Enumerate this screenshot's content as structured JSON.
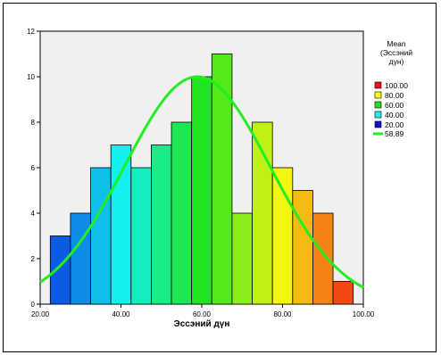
{
  "chart_data": {
    "type": "bar",
    "xlabel": "Эссэний дүн",
    "ylabel": "",
    "xlim": [
      20,
      100
    ],
    "ylim": [
      0,
      12
    ],
    "x_ticks": [
      "20.00",
      "40.00",
      "60.00",
      "80.00",
      "100.00"
    ],
    "y_ticks": [
      "0",
      "2",
      "4",
      "6",
      "8",
      "10",
      "12"
    ],
    "bins": [
      {
        "start": 22.5,
        "end": 27.5,
        "count": 3
      },
      {
        "start": 27.5,
        "end": 32.5,
        "count": 4
      },
      {
        "start": 32.5,
        "end": 37.5,
        "count": 6
      },
      {
        "start": 37.5,
        "end": 42.5,
        "count": 7
      },
      {
        "start": 42.5,
        "end": 47.5,
        "count": 6
      },
      {
        "start": 47.5,
        "end": 52.5,
        "count": 7
      },
      {
        "start": 52.5,
        "end": 57.5,
        "count": 8
      },
      {
        "start": 57.5,
        "end": 62.5,
        "count": 10
      },
      {
        "start": 62.5,
        "end": 67.5,
        "count": 11
      },
      {
        "start": 67.5,
        "end": 72.5,
        "count": 4
      },
      {
        "start": 72.5,
        "end": 77.5,
        "count": 8
      },
      {
        "start": 77.5,
        "end": 82.5,
        "count": 6
      },
      {
        "start": 82.5,
        "end": 87.5,
        "count": 5
      },
      {
        "start": 87.5,
        "end": 92.5,
        "count": 4
      },
      {
        "start": 92.5,
        "end": 97.5,
        "count": 1
      }
    ],
    "normal_curve": {
      "mean": 58.89,
      "sd": 18,
      "peak": 10,
      "color": "#22ee22"
    },
    "color_stops": [
      {
        "value": 20,
        "color": "#0a2adf"
      },
      {
        "value": 40,
        "color": "#12f0f0"
      },
      {
        "value": 60,
        "color": "#1ee51e"
      },
      {
        "value": 80,
        "color": "#f5f513"
      },
      {
        "value": 100,
        "color": "#f01010"
      }
    ],
    "legend": {
      "title_lines": [
        "Mean",
        "(Эссэний",
        "дүн)"
      ],
      "entries": [
        {
          "label": "100.00",
          "color": "#ee1111"
        },
        {
          "label": "80.00",
          "color": "#ffff22"
        },
        {
          "label": "60.00",
          "color": "#22dd22"
        },
        {
          "label": "40.00",
          "color": "#22eeee"
        },
        {
          "label": "20.00",
          "color": "#1111cc"
        }
      ],
      "line_entry": {
        "label": "58.89",
        "color": "#22ee22"
      },
      "placement": "right"
    },
    "plot_background": "#f0f0f0",
    "grid": false
  }
}
